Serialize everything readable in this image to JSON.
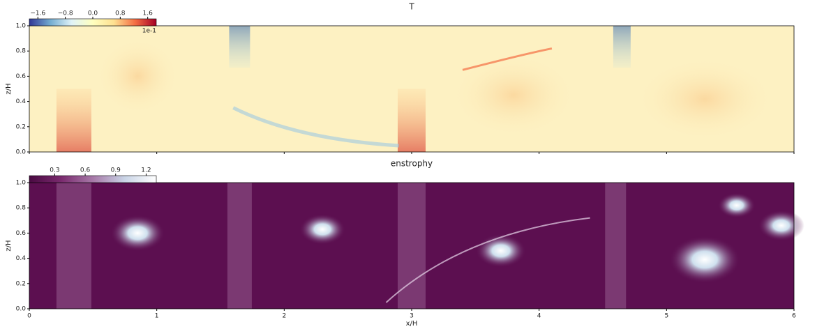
{
  "chart_data": [
    {
      "type": "heatmap",
      "title": "T",
      "ylabel": "z/H",
      "xlim": [
        0,
        6
      ],
      "xticks": [
        0,
        1,
        2,
        3,
        4,
        5,
        6
      ],
      "show_xticklabels": false,
      "ylim": [
        0,
        1
      ],
      "yticks": [
        {
          "value": 0,
          "label": "0.0"
        },
        0.2,
        0.4,
        0.6,
        0.8,
        {
          "value": 1,
          "label": "1.0"
        }
      ],
      "clim": [
        -1.85,
        1.85
      ],
      "cticks": [
        {
          "value": -1.6,
          "label": "−1.6"
        },
        {
          "value": -0.8,
          "label": "−0.8"
        },
        {
          "value": 0,
          "label": "0.0"
        },
        0.8,
        1.6
      ],
      "colorbar_offset": "1e-1",
      "colormap": [
        "#313695",
        "#74add1",
        "#e0f3f8",
        "#ffffbf",
        "#fee090",
        "#f46d43",
        "#a50026"
      ],
      "field_color": "#fdf1c2"
    },
    {
      "type": "heatmap",
      "title": "enstrophy",
      "ylabel": "z/H",
      "xlabel": "x/H",
      "xlim": [
        0,
        6
      ],
      "xticks": [
        0,
        1,
        2,
        3,
        4,
        5,
        6
      ],
      "show_xticklabels": true,
      "ylim": [
        0,
        1
      ],
      "yticks": [
        {
          "value": 0,
          "label": "0.0"
        },
        0.2,
        0.4,
        0.6,
        0.8,
        {
          "value": 1,
          "label": "1.0"
        }
      ],
      "clim": [
        0.05,
        1.3
      ],
      "cticks": [
        0.3,
        0.6,
        0.9,
        1.2
      ],
      "colormap": [
        "#4a0a42",
        "#7a2a6e",
        "#a779a8",
        "#c9d4e6",
        "#ffffff"
      ],
      "field_color": "#5c0f50"
    }
  ]
}
